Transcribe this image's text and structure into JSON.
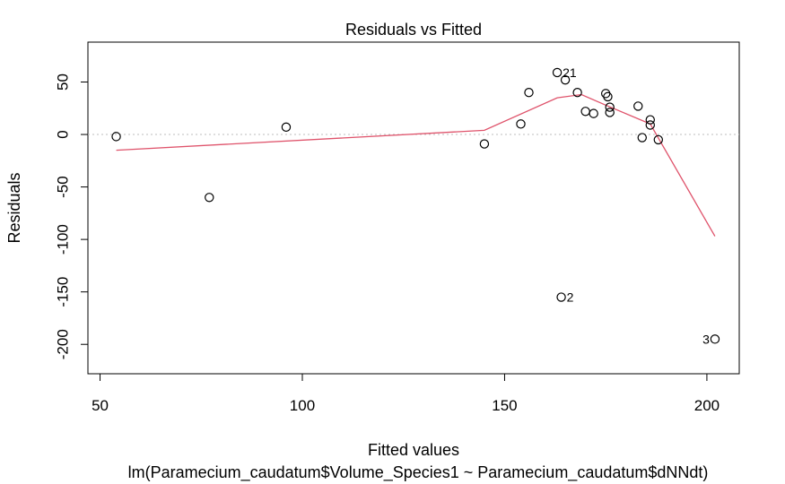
{
  "chart_data": {
    "type": "scatter",
    "title": "Residuals vs Fitted",
    "xlabel": "Fitted values",
    "ylabel": "Residuals",
    "subtitle": "lm(Paramecium_caudatum$Volume_Species1 ~ Paramecium_caudatum$dNNdt)",
    "xlim": [
      47,
      208
    ],
    "ylim": [
      -228,
      88
    ],
    "x_ticks": [
      50,
      100,
      150,
      200
    ],
    "y_ticks": [
      50,
      0,
      -50,
      -100,
      -150,
      -200
    ],
    "reference_line": {
      "y": 0,
      "style": "dotted",
      "color": "#bebebe"
    },
    "points": [
      {
        "x": 54,
        "y": -2
      },
      {
        "x": 77,
        "y": -60
      },
      {
        "x": 96,
        "y": 7
      },
      {
        "x": 145,
        "y": -9
      },
      {
        "x": 154,
        "y": 10
      },
      {
        "x": 156,
        "y": 40
      },
      {
        "x": 163,
        "y": 59
      },
      {
        "x": 164,
        "y": -155
      },
      {
        "x": 165,
        "y": 52
      },
      {
        "x": 168,
        "y": 40
      },
      {
        "x": 170,
        "y": 22
      },
      {
        "x": 172,
        "y": 20
      },
      {
        "x": 175,
        "y": 39
      },
      {
        "x": 175.5,
        "y": 36
      },
      {
        "x": 176,
        "y": 26
      },
      {
        "x": 176,
        "y": 21
      },
      {
        "x": 183,
        "y": 27
      },
      {
        "x": 184,
        "y": -3
      },
      {
        "x": 186,
        "y": 14
      },
      {
        "x": 186,
        "y": 9
      },
      {
        "x": 188,
        "y": -5
      },
      {
        "x": 202,
        "y": -195
      }
    ],
    "point_labels": [
      {
        "text": "21",
        "x": 163,
        "y": 59,
        "side": "right"
      },
      {
        "text": "2",
        "x": 164,
        "y": -155,
        "side": "right"
      },
      {
        "text": "3",
        "x": 202,
        "y": -195,
        "side": "left"
      }
    ],
    "smoother": {
      "color": "#DF536B",
      "x": [
        54,
        145,
        163,
        169,
        175,
        186,
        202
      ],
      "y": [
        -15,
        4,
        35,
        38,
        28,
        10,
        -97
      ]
    }
  }
}
